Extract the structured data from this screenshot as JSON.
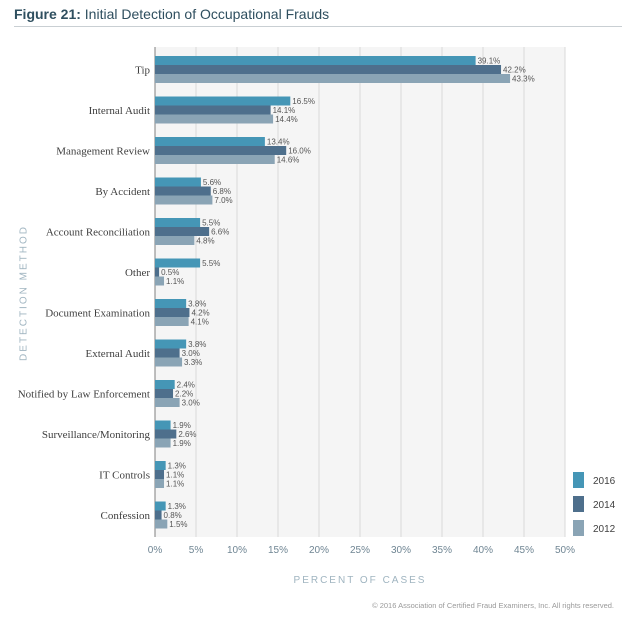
{
  "header": {
    "figure_number": "Figure 21:",
    "title": "Initial Detection of Occupational Frauds"
  },
  "footer": {
    "copyright": "© 2016 Association of Certified Fraud Examiners, Inc. All rights reserved."
  },
  "colors": {
    "plot_bg": "#f5f5f5",
    "grid": "#d9d9d9",
    "axis": "#7f7f7f",
    "label": "#404040",
    "value_label": "#555555"
  },
  "chart_data": {
    "type": "bar",
    "orientation": "horizontal",
    "title": "Initial Detection of Occupational Frauds",
    "xlabel": "PERCENT OF CASES",
    "ylabel": "DETECTION METHOD",
    "xlim": [
      0,
      50
    ],
    "xticks": [
      0,
      5,
      10,
      15,
      20,
      25,
      30,
      35,
      40,
      45,
      50
    ],
    "tick_suffix": "%",
    "grid": "vertical",
    "legend_position": "bottom-right",
    "categories": [
      "Tip",
      "Internal Audit",
      "Management Review",
      "By Accident",
      "Account Reconciliation",
      "Other",
      "Document Examination",
      "External Audit",
      "Notified by Law Enforcement",
      "Surveillance/Monitoring",
      "IT Controls",
      "Confession"
    ],
    "series": [
      {
        "name": "2016",
        "color": "#4596b6",
        "values": [
          39.1,
          16.5,
          13.4,
          5.6,
          5.5,
          5.5,
          3.8,
          3.8,
          2.4,
          1.9,
          1.3,
          1.3
        ]
      },
      {
        "name": "2014",
        "color": "#4e6f8c",
        "values": [
          42.2,
          14.1,
          16.0,
          6.8,
          6.6,
          0.5,
          4.2,
          3.0,
          2.2,
          2.6,
          1.1,
          0.8
        ]
      },
      {
        "name": "2012",
        "color": "#8aa4b5",
        "values": [
          43.3,
          14.4,
          14.6,
          7.0,
          4.8,
          1.1,
          4.1,
          3.3,
          3.0,
          1.9,
          1.1,
          1.5
        ]
      }
    ]
  }
}
